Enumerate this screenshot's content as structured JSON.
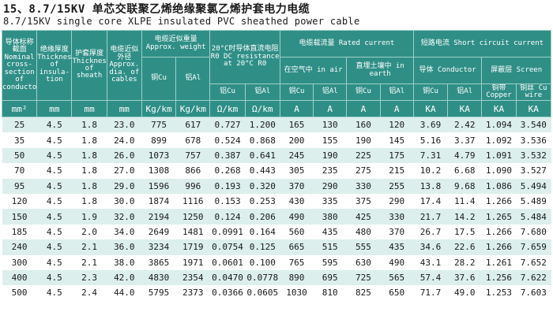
{
  "title_cn": "15、8.7/15KV 单芯交联聚乙烯绝缘聚氯乙烯护套电力电缆",
  "title_en": "8.7/15KV single core XLPE insulated PVC sheathed power cable",
  "headers": {
    "nominal": "导体标称截面 Nominal cross-section of conductors",
    "insulation": "绝缘厚度 Thickness of insula-tion",
    "sheath": "护套厚度 Thickness of sheath",
    "dia": "电缆近似外径 Approx. dia. of cables",
    "weight": "电缆近似重量 Approx. weight",
    "weight_cu": "铜Cu",
    "weight_al": "铝Al",
    "dc": "20°C时导体直流电阻R0 DC resistance at 20°C R0",
    "dc_cu": "铝Cu",
    "dc_al": "铝Al",
    "rated": "电缆载流量 Rated current",
    "air": "在空气中 in air",
    "earth": "直埋土壤中 in earth",
    "air_cu": "铜Cu",
    "air_al": "铝Al",
    "earth_cu": "铜Cu",
    "earth_al": "铝Al",
    "short": "短路电流 Short circuit current",
    "conductor": "导体 Conductor",
    "screen": "屏蔽层 Screen",
    "cond_cu": "铜Cu",
    "cond_al": "铝Al",
    "screen_tape": "铜带 Copper",
    "screen_wire": "铜丝 Cu wire"
  },
  "units": [
    "mm²",
    "mm",
    "mm",
    "mm",
    "Kg/km",
    "Kg/km",
    "Ω/km",
    "Ω/km",
    "A",
    "A",
    "A",
    "A",
    "KA",
    "KA",
    "KA",
    "KA"
  ],
  "rows": [
    [
      "25",
      "4.5",
      "1.8",
      "23.0",
      "775",
      "617",
      "0.727",
      "1.200",
      "165",
      "130",
      "160",
      "120",
      "3.69",
      "2.42",
      "1.094",
      "3.540"
    ],
    [
      "35",
      "4.5",
      "1.8",
      "24.0",
      "899",
      "678",
      "0.524",
      "0.868",
      "200",
      "155",
      "190",
      "145",
      "5.16",
      "3.37",
      "1.092",
      "3.536"
    ],
    [
      "50",
      "4.5",
      "1.8",
      "26.0",
      "1073",
      "757",
      "0.387",
      "0.641",
      "245",
      "190",
      "225",
      "175",
      "7.31",
      "4.79",
      "1.091",
      "3.532"
    ],
    [
      "70",
      "4.5",
      "1.8",
      "27.0",
      "1308",
      "866",
      "0.268",
      "0.443",
      "305",
      "235",
      "275",
      "215",
      "10.2",
      "6.68",
      "1.090",
      "3.527"
    ],
    [
      "95",
      "4.5",
      "1.8",
      "29.0",
      "1596",
      "996",
      "0.193",
      "0.320",
      "370",
      "290",
      "330",
      "255",
      "13.8",
      "9.68",
      "1.086",
      "5.494"
    ],
    [
      "120",
      "4.5",
      "1.8",
      "30.0",
      "1874",
      "1116",
      "0.153",
      "0.253",
      "430",
      "335",
      "375",
      "290",
      "17.4",
      "11.4",
      "1.266",
      "5.489"
    ],
    [
      "150",
      "4.5",
      "1.9",
      "32.0",
      "2194",
      "1250",
      "0.124",
      "0.206",
      "490",
      "380",
      "425",
      "330",
      "21.7",
      "14.2",
      "1.265",
      "5.484"
    ],
    [
      "185",
      "4.5",
      "2.0",
      "34.0",
      "2649",
      "1481",
      "0.0991",
      "0.164",
      "560",
      "435",
      "480",
      "370",
      "26.7",
      "17.5",
      "1.266",
      "7.680"
    ],
    [
      "240",
      "4.5",
      "2.1",
      "36.0",
      "3234",
      "1719",
      "0.0754",
      "0.125",
      "665",
      "515",
      "555",
      "435",
      "34.6",
      "22.6",
      "1.266",
      "7.659"
    ],
    [
      "300",
      "4.5",
      "2.1",
      "38.0",
      "3865",
      "1971",
      "0.0601",
      "0.100",
      "765",
      "595",
      "630",
      "490",
      "43.1",
      "28.2",
      "1.261",
      "7.652"
    ],
    [
      "400",
      "4.5",
      "2.3",
      "42.0",
      "4830",
      "2354",
      "0.0470",
      "0.0778",
      "890",
      "695",
      "725",
      "565",
      "57.4",
      "37.6",
      "1.256",
      "7.622"
    ],
    [
      "500",
      "4.5",
      "2.4",
      "44.0",
      "5795",
      "2373",
      "0.0366",
      "0.0605",
      "1030",
      "810",
      "825",
      "650",
      "71.7",
      "49.0",
      "1.253",
      "7.603"
    ]
  ]
}
